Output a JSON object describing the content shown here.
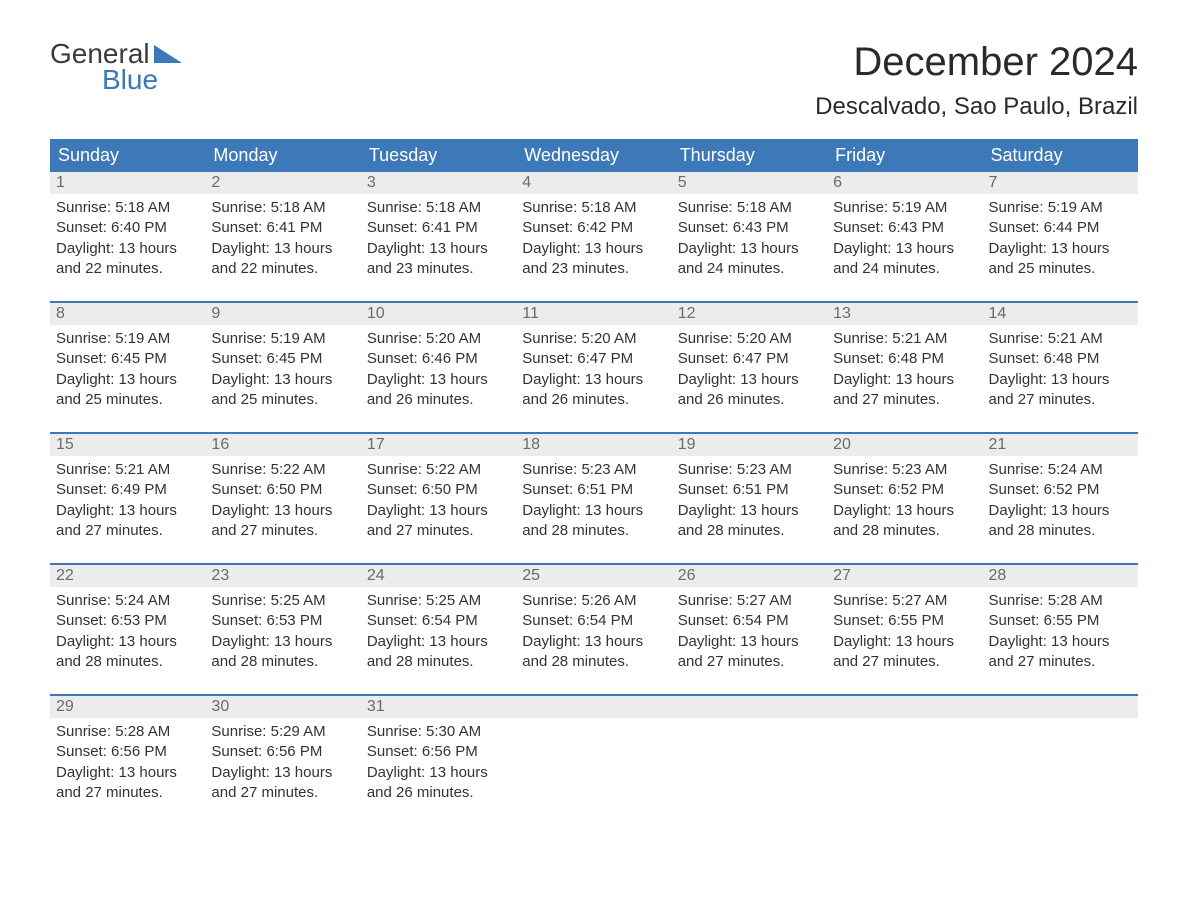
{
  "logo": {
    "line1": "General",
    "line2": "Blue"
  },
  "title": "December 2024",
  "location": "Descalvado, Sao Paulo, Brazil",
  "colors": {
    "header_bg": "#3d79b8",
    "header_text": "#ffffff",
    "daynum_bg": "#ececec",
    "daynum_text": "#6a6a6a",
    "body_text": "#333333",
    "divider": "#3d79b8",
    "logo_blue": "#3d79b8",
    "logo_dark": "#3a3a3a"
  },
  "day_names": [
    "Sunday",
    "Monday",
    "Tuesday",
    "Wednesday",
    "Thursday",
    "Friday",
    "Saturday"
  ],
  "weeks": [
    [
      {
        "n": "1",
        "sr": "5:18 AM",
        "ss": "6:40 PM",
        "dl": "13 hours and 22 minutes."
      },
      {
        "n": "2",
        "sr": "5:18 AM",
        "ss": "6:41 PM",
        "dl": "13 hours and 22 minutes."
      },
      {
        "n": "3",
        "sr": "5:18 AM",
        "ss": "6:41 PM",
        "dl": "13 hours and 23 minutes."
      },
      {
        "n": "4",
        "sr": "5:18 AM",
        "ss": "6:42 PM",
        "dl": "13 hours and 23 minutes."
      },
      {
        "n": "5",
        "sr": "5:18 AM",
        "ss": "6:43 PM",
        "dl": "13 hours and 24 minutes."
      },
      {
        "n": "6",
        "sr": "5:19 AM",
        "ss": "6:43 PM",
        "dl": "13 hours and 24 minutes."
      },
      {
        "n": "7",
        "sr": "5:19 AM",
        "ss": "6:44 PM",
        "dl": "13 hours and 25 minutes."
      }
    ],
    [
      {
        "n": "8",
        "sr": "5:19 AM",
        "ss": "6:45 PM",
        "dl": "13 hours and 25 minutes."
      },
      {
        "n": "9",
        "sr": "5:19 AM",
        "ss": "6:45 PM",
        "dl": "13 hours and 25 minutes."
      },
      {
        "n": "10",
        "sr": "5:20 AM",
        "ss": "6:46 PM",
        "dl": "13 hours and 26 minutes."
      },
      {
        "n": "11",
        "sr": "5:20 AM",
        "ss": "6:47 PM",
        "dl": "13 hours and 26 minutes."
      },
      {
        "n": "12",
        "sr": "5:20 AM",
        "ss": "6:47 PM",
        "dl": "13 hours and 26 minutes."
      },
      {
        "n": "13",
        "sr": "5:21 AM",
        "ss": "6:48 PM",
        "dl": "13 hours and 27 minutes."
      },
      {
        "n": "14",
        "sr": "5:21 AM",
        "ss": "6:48 PM",
        "dl": "13 hours and 27 minutes."
      }
    ],
    [
      {
        "n": "15",
        "sr": "5:21 AM",
        "ss": "6:49 PM",
        "dl": "13 hours and 27 minutes."
      },
      {
        "n": "16",
        "sr": "5:22 AM",
        "ss": "6:50 PM",
        "dl": "13 hours and 27 minutes."
      },
      {
        "n": "17",
        "sr": "5:22 AM",
        "ss": "6:50 PM",
        "dl": "13 hours and 27 minutes."
      },
      {
        "n": "18",
        "sr": "5:23 AM",
        "ss": "6:51 PM",
        "dl": "13 hours and 28 minutes."
      },
      {
        "n": "19",
        "sr": "5:23 AM",
        "ss": "6:51 PM",
        "dl": "13 hours and 28 minutes."
      },
      {
        "n": "20",
        "sr": "5:23 AM",
        "ss": "6:52 PM",
        "dl": "13 hours and 28 minutes."
      },
      {
        "n": "21",
        "sr": "5:24 AM",
        "ss": "6:52 PM",
        "dl": "13 hours and 28 minutes."
      }
    ],
    [
      {
        "n": "22",
        "sr": "5:24 AM",
        "ss": "6:53 PM",
        "dl": "13 hours and 28 minutes."
      },
      {
        "n": "23",
        "sr": "5:25 AM",
        "ss": "6:53 PM",
        "dl": "13 hours and 28 minutes."
      },
      {
        "n": "24",
        "sr": "5:25 AM",
        "ss": "6:54 PM",
        "dl": "13 hours and 28 minutes."
      },
      {
        "n": "25",
        "sr": "5:26 AM",
        "ss": "6:54 PM",
        "dl": "13 hours and 28 minutes."
      },
      {
        "n": "26",
        "sr": "5:27 AM",
        "ss": "6:54 PM",
        "dl": "13 hours and 27 minutes."
      },
      {
        "n": "27",
        "sr": "5:27 AM",
        "ss": "6:55 PM",
        "dl": "13 hours and 27 minutes."
      },
      {
        "n": "28",
        "sr": "5:28 AM",
        "ss": "6:55 PM",
        "dl": "13 hours and 27 minutes."
      }
    ],
    [
      {
        "n": "29",
        "sr": "5:28 AM",
        "ss": "6:56 PM",
        "dl": "13 hours and 27 minutes."
      },
      {
        "n": "30",
        "sr": "5:29 AM",
        "ss": "6:56 PM",
        "dl": "13 hours and 27 minutes."
      },
      {
        "n": "31",
        "sr": "5:30 AM",
        "ss": "6:56 PM",
        "dl": "13 hours and 26 minutes."
      },
      null,
      null,
      null,
      null
    ]
  ],
  "labels": {
    "sunrise": "Sunrise:",
    "sunset": "Sunset:",
    "daylight": "Daylight:"
  }
}
